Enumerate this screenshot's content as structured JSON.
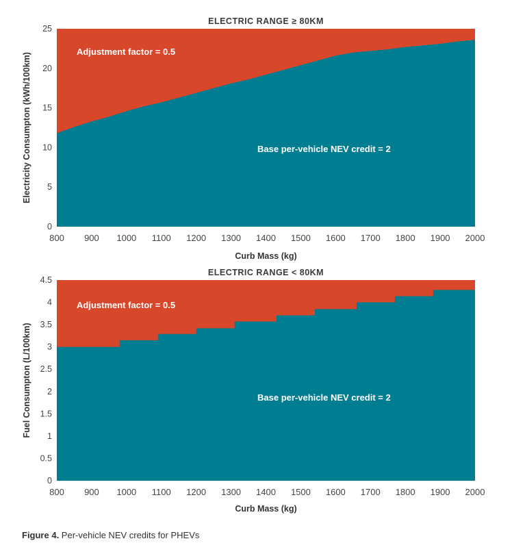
{
  "chart_data": [
    {
      "type": "area",
      "title": "ELECTRIC RANGE ≥ 80KM",
      "xlabel": "Curb Mass (kg)",
      "ylabel": "Electricity Consumpton (kWh/100km)",
      "xlim": [
        800,
        2000
      ],
      "ylim": [
        0,
        25
      ],
      "x_ticks": [
        "800",
        "900",
        "1000",
        "1100",
        "1200",
        "1300",
        "1400",
        "1500",
        "1600",
        "1700",
        "1800",
        "1900",
        "2000"
      ],
      "y_ticks": [
        "0",
        "5",
        "10",
        "15",
        "20",
        "25"
      ],
      "stair": false,
      "series": [
        {
          "name": "Base per-vehicle NEV credit = 2",
          "color": "#007d91",
          "x": [
            800,
            850,
            900,
            950,
            1000,
            1050,
            1100,
            1150,
            1200,
            1250,
            1300,
            1350,
            1400,
            1450,
            1500,
            1550,
            1600,
            1650,
            1700,
            1750,
            1800,
            1850,
            1900,
            1950,
            2000
          ],
          "y": [
            11.8,
            12.6,
            13.3,
            13.9,
            14.6,
            15.2,
            15.7,
            16.3,
            16.9,
            17.5,
            18.1,
            18.6,
            19.2,
            19.8,
            20.4,
            21.0,
            21.6,
            22.0,
            22.2,
            22.4,
            22.7,
            22.9,
            23.1,
            23.4,
            23.6
          ]
        },
        {
          "name": "Adjustment factor = 0.5",
          "color": "#d9472b",
          "fill_to": 25
        }
      ]
    },
    {
      "type": "area",
      "title": "ELECTRIC RANGE < 80KM",
      "xlabel": "Curb Mass (kg)",
      "ylabel": "Fuel Consumpton (L/100km)",
      "xlim": [
        800,
        2000
      ],
      "ylim": [
        0,
        4.5
      ],
      "x_ticks": [
        "800",
        "900",
        "1000",
        "1100",
        "1200",
        "1300",
        "1400",
        "1500",
        "1600",
        "1700",
        "1800",
        "1900",
        "2000"
      ],
      "y_ticks": [
        "0",
        "0.5",
        "1",
        "1.5",
        "2",
        "2.5",
        "3",
        "3.5",
        "4",
        "4.5"
      ],
      "stair": true,
      "series": [
        {
          "name": "Base per-vehicle NEV credit = 2",
          "color": "#007d91",
          "x": [
            800,
            980,
            1090,
            1200,
            1310,
            1430,
            1540,
            1660,
            1770,
            1880,
            2000
          ],
          "y": [
            3.0,
            3.15,
            3.29,
            3.42,
            3.57,
            3.71,
            3.85,
            4.0,
            4.14,
            4.28,
            4.28
          ]
        },
        {
          "name": "Adjustment factor = 0.5",
          "color": "#d9472b",
          "fill_to": 4.5
        }
      ]
    }
  ],
  "caption": {
    "label": "Figure 4.",
    "text": " Per-vehicle NEV credits for PHEVs"
  }
}
